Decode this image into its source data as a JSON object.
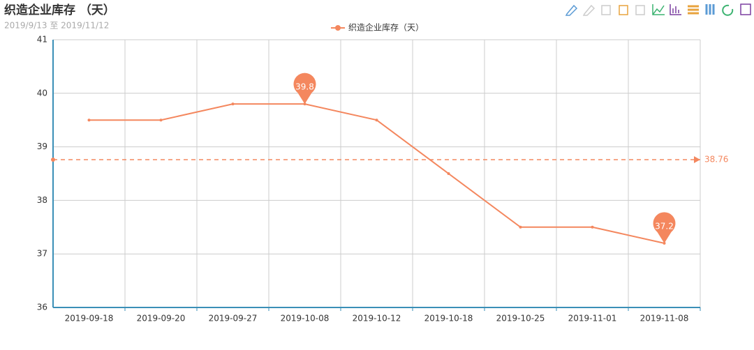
{
  "chart_data": {
    "type": "line",
    "title": "织造企业库存 （天）",
    "subtitle": "2019/9/13 至 2019/11/12",
    "categories": [
      "2019-09-18",
      "2019-09-20",
      "2019-09-27",
      "2019-10-08",
      "2019-10-12",
      "2019-10-18",
      "2019-10-25",
      "2019-11-01",
      "2019-11-08"
    ],
    "series": [
      {
        "name": "织造企业库存（天）",
        "color": "#f4875e",
        "values": [
          39.5,
          39.5,
          39.8,
          39.8,
          39.5,
          38.5,
          37.5,
          37.5,
          37.2
        ]
      }
    ],
    "ylim": [
      36,
      41
    ],
    "yticks": [
      36,
      37,
      38,
      39,
      40,
      41
    ],
    "grid": true,
    "mark_points": [
      39.8,
      37.2
    ],
    "mark_line": 38.76
  }
}
